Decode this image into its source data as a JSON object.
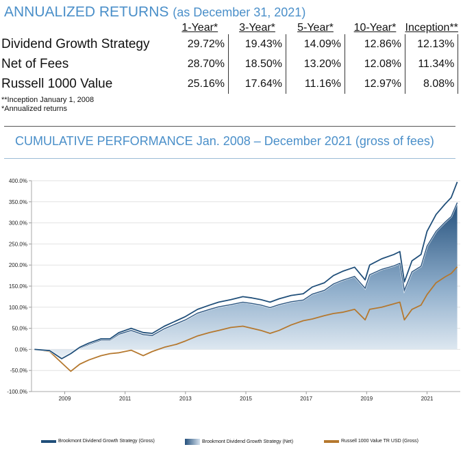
{
  "returns_table": {
    "title": "ANNUALIZED RETURNS",
    "subtitle": "(as December 31, 2021)",
    "columns": [
      "1-Year*",
      "3-Year*",
      "5-Year*",
      "10-Year*",
      "Inception**"
    ],
    "rows": [
      {
        "name": "Dividend Growth Strategy",
        "values": [
          "29.72%",
          "19.43%",
          "14.09%",
          "12.86%",
          "12.13%"
        ]
      },
      {
        "name": "Net of Fees",
        "values": [
          "28.70%",
          "18.50%",
          "13.20%",
          "12.08%",
          "11.34%"
        ]
      },
      {
        "name": "Russell 1000 Value",
        "values": [
          "25.16%",
          "17.64%",
          "11.16%",
          "12.97%",
          "8.08%"
        ]
      }
    ],
    "notes": [
      "**Inception January 1, 2008",
      "*Annualized returns"
    ]
  },
  "chart_data": {
    "type": "area",
    "title": "CUMULATIVE PERFORMANCE Jan. 2008 – December 2021 (gross of fees)",
    "xlabel": "",
    "ylabel": "",
    "x_range": [
      2007.9,
      2022.1
    ],
    "ylim": [
      -100,
      400
    ],
    "yticks": [
      -100,
      -50,
      0,
      50,
      100,
      150,
      200,
      250,
      300,
      350,
      400
    ],
    "ytick_labels": [
      "-100.0%",
      "-50.0%",
      "0.0%",
      "50.0%",
      "100.0%",
      "150.0%",
      "200.0%",
      "250.0%",
      "300.0%",
      "350.0%",
      "400.0%"
    ],
    "xticks": [
      2009,
      2011,
      2013,
      2015,
      2017,
      2019,
      2021
    ],
    "xtick_labels": [
      "2009",
      "2011",
      "2013",
      "2015",
      "2017",
      "2019",
      "2021"
    ],
    "grid": true,
    "legend_position": "bottom",
    "x": [
      2008.0,
      2008.5,
      2008.9,
      2009.2,
      2009.5,
      2009.8,
      2010.2,
      2010.5,
      2010.8,
      2011.2,
      2011.6,
      2011.9,
      2012.3,
      2012.7,
      2013.0,
      2013.4,
      2013.8,
      2014.1,
      2014.5,
      2014.9,
      2015.2,
      2015.5,
      2015.8,
      2016.1,
      2016.5,
      2016.9,
      2017.2,
      2017.6,
      2017.9,
      2018.2,
      2018.6,
      2018.95,
      2019.1,
      2019.5,
      2019.9,
      2020.1,
      2020.25,
      2020.5,
      2020.8,
      2021.0,
      2021.3,
      2021.6,
      2021.8,
      2022.0
    ],
    "series": [
      {
        "name": "Brookmont Dividend Growth Strategy (Gross)",
        "color": "#1f4e79",
        "values": [
          0,
          -3,
          -22,
          -10,
          5,
          15,
          25,
          25,
          40,
          50,
          40,
          38,
          55,
          68,
          78,
          95,
          105,
          112,
          118,
          125,
          122,
          118,
          112,
          120,
          128,
          132,
          148,
          158,
          175,
          185,
          195,
          165,
          200,
          215,
          225,
          232,
          160,
          210,
          225,
          280,
          320,
          345,
          360,
          397
        ]
      },
      {
        "name": "Brookmont Dividend Growth Strategy (Net)",
        "color": "#6e93b8",
        "values": [
          0,
          -3,
          -22,
          -11,
          3,
          12,
          22,
          22,
          36,
          45,
          35,
          33,
          49,
          61,
          70,
          86,
          95,
          101,
          106,
          112,
          109,
          105,
          99,
          106,
          113,
          117,
          131,
          140,
          155,
          164,
          173,
          145,
          177,
          190,
          198,
          204,
          140,
          184,
          197,
          245,
          280,
          302,
          315,
          348
        ]
      },
      {
        "name": "Russell 1000 Value TR USD (Gross)",
        "color": "#b5782e",
        "values": [
          0,
          -5,
          -32,
          -52,
          -35,
          -25,
          -15,
          -10,
          -8,
          -2,
          -15,
          -5,
          5,
          12,
          20,
          32,
          40,
          45,
          52,
          55,
          50,
          45,
          38,
          45,
          58,
          68,
          72,
          80,
          85,
          88,
          95,
          70,
          95,
          100,
          108,
          112,
          70,
          95,
          105,
          130,
          158,
          172,
          180,
          196
        ]
      }
    ]
  },
  "legend": [
    {
      "label": "Brookmont Dividend Growth Strategy (Gross)"
    },
    {
      "label": "Brookmont Dividend Growth Strategy (Net)"
    },
    {
      "label": "Russell 1000 Value TR USD (Gross)"
    }
  ]
}
